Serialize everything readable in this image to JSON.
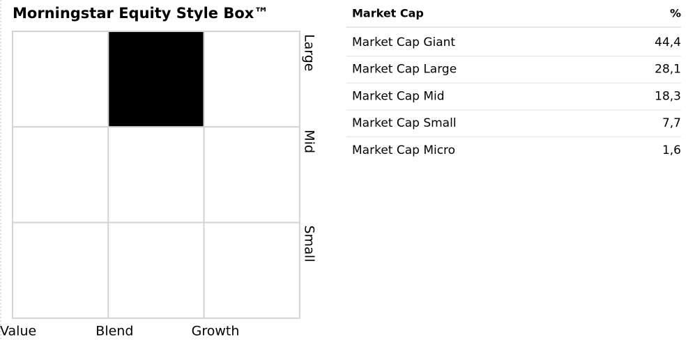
{
  "style_box": {
    "title": "Morningstar Equity Style Box™",
    "rows": [
      "Large",
      "Mid",
      "Small"
    ],
    "columns": [
      "Value",
      "Blend",
      "Growth"
    ],
    "highlight": {
      "row": 0,
      "column": 1
    },
    "highlight_color": "#000000"
  },
  "table": {
    "header": [
      "Market Cap",
      "%"
    ],
    "rows": [
      [
        "Market Cap Giant",
        "44,4"
      ],
      [
        "Market Cap Large",
        "28,1"
      ],
      [
        "Market Cap Mid",
        "18,3"
      ],
      [
        "Market Cap Small",
        "7,7"
      ],
      [
        "Market Cap Micro",
        "1,6"
      ]
    ]
  }
}
